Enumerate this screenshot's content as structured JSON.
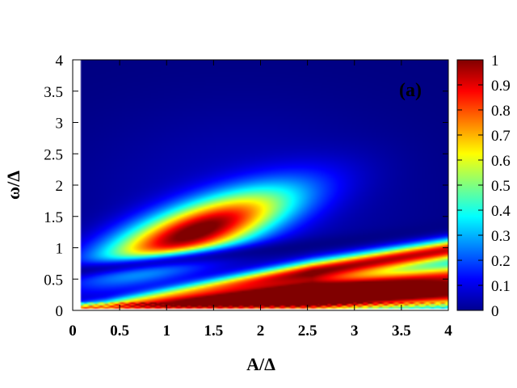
{
  "chart_data": {
    "type": "heatmap",
    "panel_label": "(a)",
    "xlabel": "A/Δ",
    "ylabel": "ω/Δ",
    "xlim": [
      0,
      4
    ],
    "ylim": [
      0,
      4
    ],
    "x_ticks": [
      "0",
      "0.5",
      "1",
      "1.5",
      "2",
      "2.5",
      "3",
      "3.5",
      "4"
    ],
    "y_ticks": [
      "0",
      "0.5",
      "1",
      "1.5",
      "2",
      "2.5",
      "3",
      "3.5",
      "4"
    ],
    "colorbar": {
      "range": [
        0,
        1
      ],
      "ticks": [
        "0",
        "0.1",
        "0.2",
        "0.3",
        "0.4",
        "0.5",
        "0.6",
        "0.7",
        "0.8",
        "0.9",
        "1"
      ],
      "colormap": "jet"
    },
    "features": [
      {
        "kind": "main-peak",
        "center_x": 1.3,
        "center_y": 1.25,
        "max_value": 1.0
      },
      {
        "kind": "resonance-band",
        "from_x": 0.5,
        "from_y": 0.12,
        "to_x": 4.0,
        "to_y": 0.95,
        "max_value": 0.9
      }
    ]
  }
}
